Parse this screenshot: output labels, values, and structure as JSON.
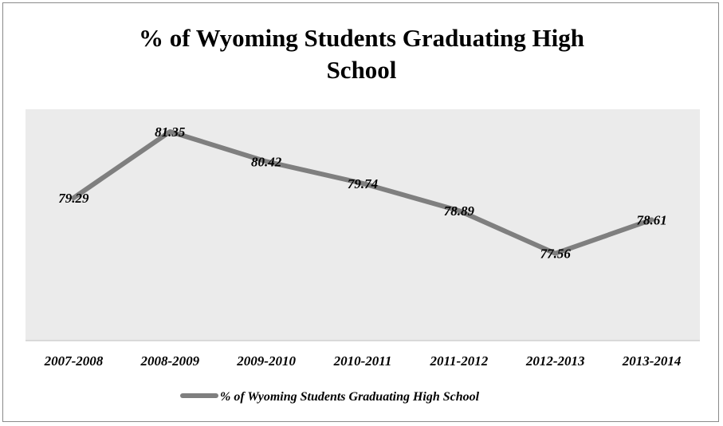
{
  "title": {
    "line1": "% of Wyoming Students Graduating High",
    "line2": "School"
  },
  "colors": {
    "plot_background": "#ebebeb",
    "series_line": "#7f7f7f",
    "frame": "#8a8a8a"
  },
  "chart_data": {
    "type": "line",
    "title": "% of Wyoming Students Graduating High School",
    "xlabel": "",
    "ylabel": "",
    "categories": [
      "2007-2008",
      "2008-2009",
      "2009-2010",
      "2010-2011",
      "2011-2012",
      "2012-2013",
      "2013-2014"
    ],
    "series": [
      {
        "name": "% of Wyoming Students Graduating High School",
        "values": [
          79.29,
          81.35,
          80.42,
          79.74,
          78.89,
          77.56,
          78.61
        ],
        "data_labels": [
          "79.29",
          "81.35",
          "80.42",
          "79.74",
          "78.89",
          "77.56",
          "78.61"
        ]
      }
    ],
    "grid": false,
    "legend_position": "bottom"
  }
}
